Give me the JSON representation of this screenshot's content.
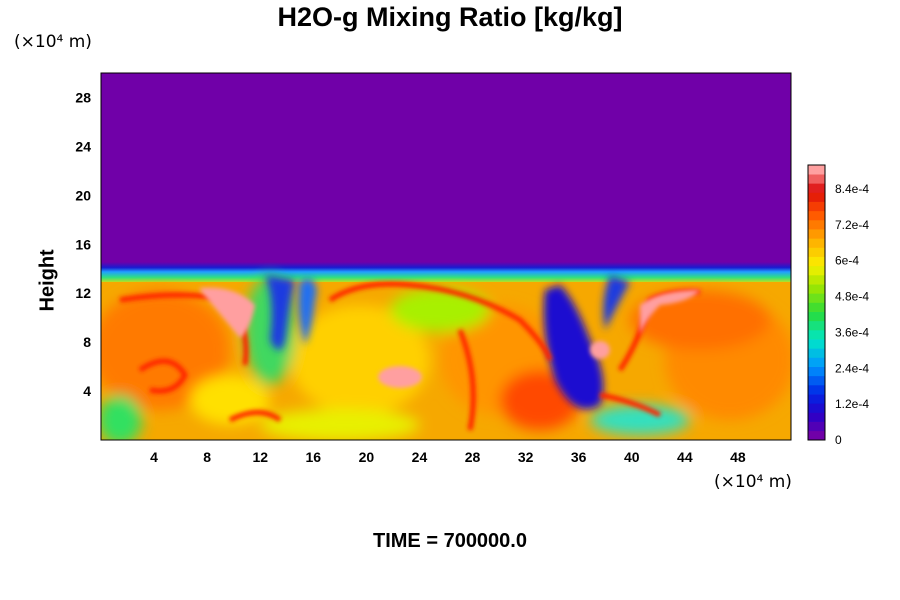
{
  "chart_data": {
    "type": "heatmap",
    "title": "H2O-g Mixing Ratio [kg/kg]",
    "ylabel": "Height",
    "x_unit": "(×10⁴ m)",
    "y_unit": "(×10⁴ m)",
    "xlim": [
      0,
      52
    ],
    "ylim": [
      0,
      30
    ],
    "x_ticks": [
      4,
      8,
      12,
      16,
      20,
      24,
      28,
      32,
      36,
      40,
      44,
      48
    ],
    "y_ticks": [
      4,
      8,
      12,
      16,
      20,
      24,
      28
    ],
    "colorbar": {
      "range": [
        0,
        0.00092
      ],
      "tick_labels": [
        "0",
        "1.2e-4",
        "2.4e-4",
        "3.6e-4",
        "4.8e-4",
        "6e-4",
        "7.2e-4",
        "8.4e-4"
      ],
      "tick_values": [
        0,
        0.00012,
        0.00024,
        0.00036,
        0.00048,
        0.0006,
        0.00072,
        0.00084
      ]
    },
    "moist_layer_top": 13.8,
    "background_value": 0
  },
  "footer": {
    "time_label": "TIME = 700000.0"
  },
  "colors": {
    "background": "#7000a8",
    "dry_pocket": "#1a0ad0"
  }
}
